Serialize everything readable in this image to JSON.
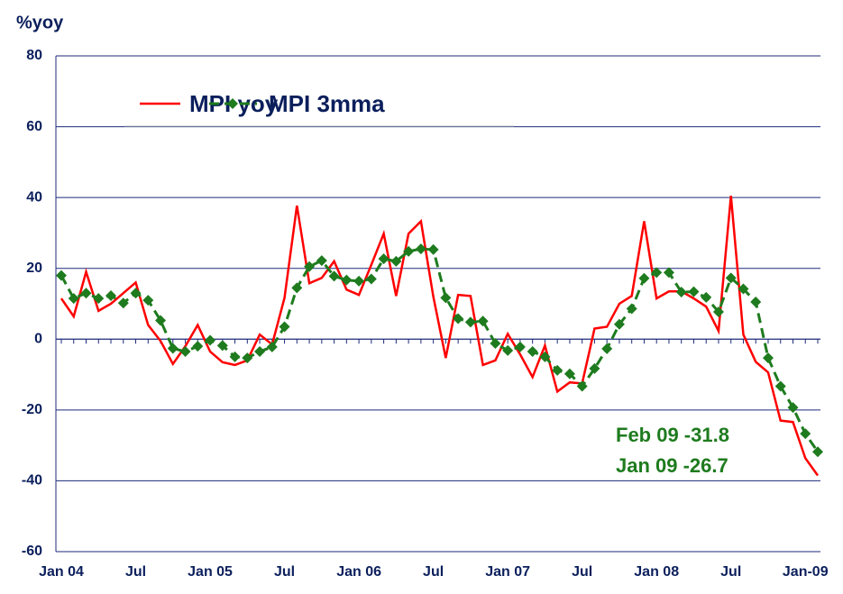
{
  "chart_data": {
    "type": "line",
    "y_axis_label": "%yoy",
    "categories": [
      "Jan 04",
      null,
      null,
      null,
      null,
      null,
      "Jul",
      null,
      null,
      null,
      null,
      null,
      "Jan 05",
      null,
      null,
      null,
      null,
      null,
      "Jul",
      null,
      null,
      null,
      null,
      null,
      "Jan 06",
      null,
      null,
      null,
      null,
      null,
      "Jul",
      null,
      null,
      null,
      null,
      null,
      "Jan  07",
      null,
      null,
      null,
      null,
      null,
      "Jul",
      null,
      null,
      null,
      null,
      null,
      "Jan 08",
      null,
      null,
      null,
      null,
      null,
      "Jul",
      null,
      null,
      null,
      null,
      null,
      "Jan-09",
      null
    ],
    "series": [
      {
        "name": "MPI yoy",
        "color": "#ff0000",
        "values": [
          11.5,
          6.4,
          19,
          8,
          10,
          13,
          16,
          4,
          -0.5,
          -7,
          -2,
          4,
          -3.5,
          -6.5,
          -7.3,
          -6,
          1.3,
          -1.5,
          11.7,
          37.7,
          15.8,
          17.3,
          22,
          14,
          12.5,
          21,
          29.8,
          12.2,
          29.8,
          33.3,
          12,
          -5.3,
          12.5,
          12.2,
          -7.3,
          -6,
          1.5,
          -4.3,
          -10.7,
          -1.8,
          -14.8,
          -12.2,
          -12.5,
          3,
          3.5,
          10,
          12.2,
          33.3,
          11.5,
          13.5,
          13.5,
          11.5,
          9.2,
          2.3,
          40.5,
          1.3,
          -6.4,
          -9.4,
          -23,
          -23.4,
          -33.6,
          -38.5
        ]
      },
      {
        "name": "MPI 3mma",
        "color": "#1e7b1e",
        "values": [
          18,
          11.5,
          13,
          11.5,
          12.3,
          10.2,
          13,
          11,
          5.3,
          -2.6,
          -3.5,
          -2,
          -0.3,
          -1.8,
          -5,
          -5.3,
          -3.5,
          -2.2,
          3.5,
          14.5,
          20.5,
          22.2,
          17.8,
          16.7,
          16.4,
          17,
          22.7,
          22,
          24.8,
          25.5,
          25.3,
          11.7,
          5.8,
          4.8,
          5.1,
          -1.2,
          -3.2,
          -2.2,
          -3.5,
          -5,
          -8.8,
          -9.8,
          -13.3,
          -8.3,
          -2.7,
          4.2,
          8.6,
          17.2,
          18.8,
          18.8,
          13.3,
          13.4,
          11.8,
          7.7,
          17.3,
          14.2,
          10.5,
          -5.3,
          -13.3,
          -19.3,
          -26.7,
          -31.8
        ]
      }
    ],
    "ylim": [
      -60,
      80
    ],
    "yticks": [
      80,
      60,
      40,
      20,
      0,
      -20,
      -40,
      -60
    ],
    "grid": true,
    "annotations": [
      "Feb 09 -31.8",
      "Jan 09 -26.7"
    ]
  }
}
